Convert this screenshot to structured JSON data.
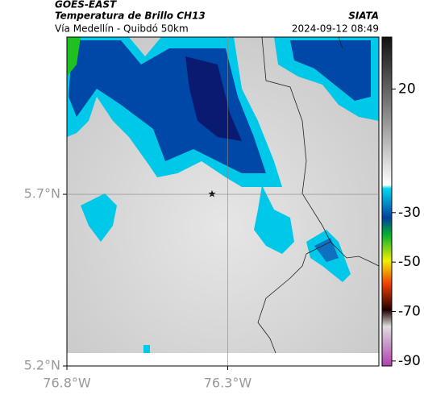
{
  "header": {
    "source": "GOES-EAST",
    "title": "Temperatura de Brillo CH13",
    "agency": "SIATA",
    "route": "Vía Medellín - Quibdó 50km",
    "datetime": "2024-09-12 08:49"
  },
  "map": {
    "xlim": [
      -76.8,
      -75.83
    ],
    "ylim": [
      5.2,
      6.158
    ],
    "xticks": [
      {
        "value": -76.8,
        "label": "76.8°W"
      },
      {
        "value": -76.3,
        "label": "76.3°W"
      }
    ],
    "yticks": [
      {
        "value": 5.2,
        "label": "5.2°N"
      },
      {
        "value": 5.7,
        "label": "5.7°N"
      }
    ]
  },
  "colorbar": {
    "lim": [
      41,
      -92
    ],
    "ticks": [
      20,
      -30,
      -50,
      -70,
      -90
    ]
  }
}
